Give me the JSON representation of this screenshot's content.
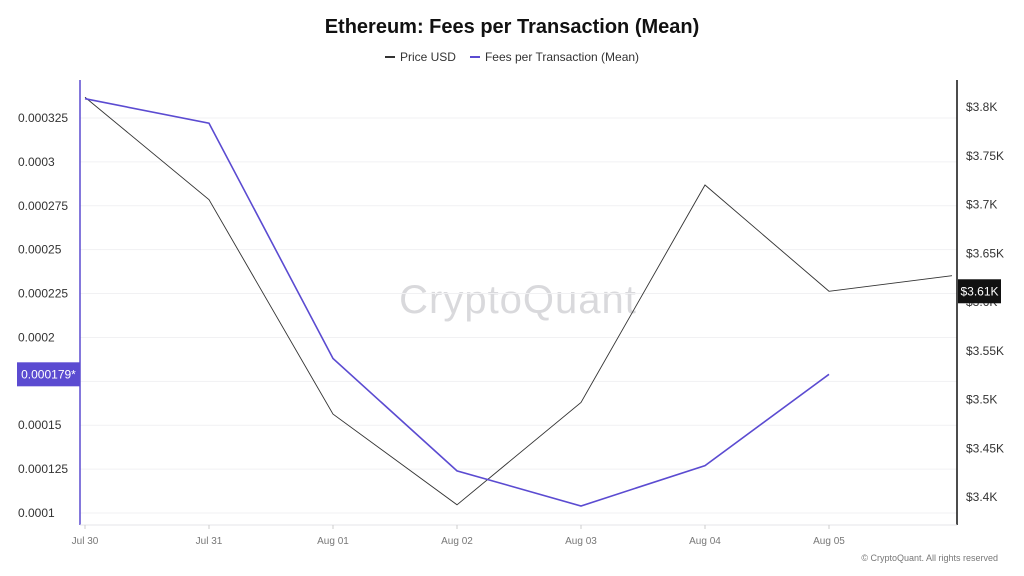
{
  "title": "Ethereum: Fees per Transaction (Mean)",
  "watermark": "CryptoQuant",
  "copyright": "© CryptoQuant. All rights reserved",
  "colors": {
    "price": "#333333",
    "fees": "#5b4bd1",
    "price_badge": "#111111",
    "fees_badge": "#5b4bd1"
  },
  "chart_data": {
    "type": "line",
    "title": "Ethereum: Fees per Transaction (Mean)",
    "categories": [
      "Jul 30",
      "Jul 31",
      "Aug 01",
      "Aug 02",
      "Aug 03",
      "Aug 04",
      "Aug 05"
    ],
    "series": [
      {
        "name": "Price USD",
        "axis": "right",
        "values": [
          3810,
          3705,
          3485,
          3392,
          3497,
          3720,
          3611
        ],
        "extra_point_value": 3627
      },
      {
        "name": "Fees per Transaction (Mean)",
        "axis": "left",
        "values": [
          0.000336,
          0.000322,
          0.000188,
          0.000124,
          0.000104,
          0.000127,
          0.000179
        ]
      }
    ],
    "left_axis": {
      "ticks": [
        0.0001,
        0.000125,
        0.00015,
        0.000175,
        0.0002,
        0.000225,
        0.00025,
        0.000275,
        0.0003,
        0.000325
      ],
      "tick_labels": [
        "0.0001",
        "0.000125",
        "0.00015",
        "0.000175",
        "0.0002",
        "0.000225",
        "0.00025",
        "0.000275",
        "0.0003",
        "0.000325"
      ],
      "current_label": "0.000179*",
      "current_value": 0.000179
    },
    "right_axis": {
      "ticks": [
        3400,
        3450,
        3500,
        3550,
        3600,
        3650,
        3700,
        3750,
        3800
      ],
      "tick_labels": [
        "$3.4K",
        "$3.45K",
        "$3.5K",
        "$3.55K",
        "$3.6K",
        "$3.65K",
        "$3.7K",
        "$3.75K",
        "$3.8K"
      ],
      "current_label": "$3.61K",
      "current_value": 3611
    },
    "legend": "top-center",
    "grid": true
  }
}
